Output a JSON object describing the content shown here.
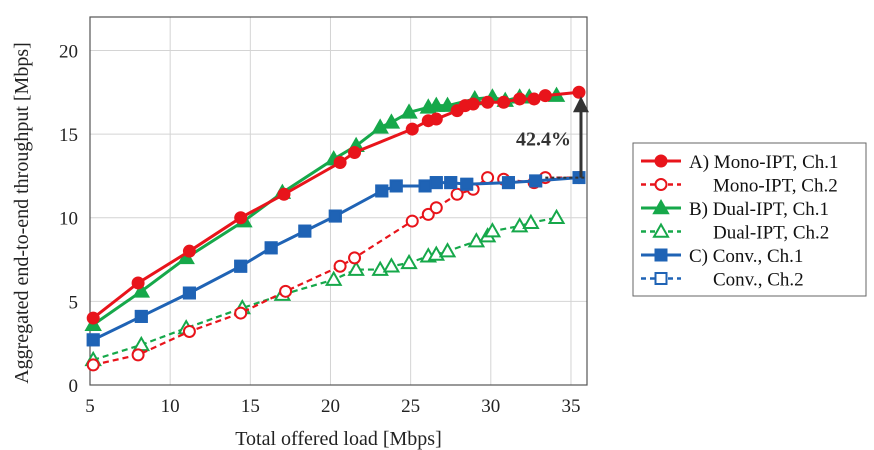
{
  "chart_data": {
    "type": "line",
    "xlabel": "Total offered load [Mbps]",
    "ylabel": "Aggregated end-to-end throughput [Mbps]",
    "xlim": [
      5,
      36
    ],
    "ylim": [
      0,
      22
    ],
    "xticks": [
      5,
      10,
      15,
      20,
      25,
      30,
      35
    ],
    "yticks": [
      0,
      5,
      10,
      15,
      20
    ],
    "grid": true,
    "legend_position": "right",
    "series": [
      {
        "name": "A) Mono-IPT, Ch.1",
        "color": "#e8141b",
        "dash": false,
        "marker": "circle",
        "filled": true,
        "points": [
          [
            5.2,
            4.0
          ],
          [
            8.0,
            6.1
          ],
          [
            11.2,
            8.0
          ],
          [
            14.4,
            10.0
          ],
          [
            17.1,
            11.4
          ],
          [
            20.6,
            13.3
          ],
          [
            21.5,
            13.9
          ],
          [
            25.1,
            15.3
          ],
          [
            26.1,
            15.8
          ],
          [
            26.6,
            15.9
          ],
          [
            27.9,
            16.4
          ],
          [
            28.4,
            16.7
          ],
          [
            28.9,
            16.8
          ],
          [
            29.8,
            16.9
          ],
          [
            30.8,
            16.9
          ],
          [
            31.8,
            17.1
          ],
          [
            32.7,
            17.1
          ],
          [
            33.4,
            17.3
          ],
          [
            35.5,
            17.5
          ]
        ]
      },
      {
        "name": "Mono-IPT, Ch.2",
        "color": "#e8141b",
        "dash": true,
        "marker": "circle",
        "filled": false,
        "points": [
          [
            5.2,
            1.2
          ],
          [
            8.0,
            1.8
          ],
          [
            11.2,
            3.2
          ],
          [
            14.4,
            4.3
          ],
          [
            17.2,
            5.6
          ],
          [
            20.6,
            7.1
          ],
          [
            21.5,
            7.6
          ],
          [
            25.1,
            9.8
          ],
          [
            26.1,
            10.2
          ],
          [
            26.6,
            10.6
          ],
          [
            27.9,
            11.4
          ],
          [
            28.9,
            11.7
          ],
          [
            29.8,
            12.4
          ],
          [
            30.8,
            12.3
          ],
          [
            32.7,
            12.1
          ],
          [
            33.4,
            12.4
          ],
          [
            35.5,
            12.4
          ]
        ]
      },
      {
        "name": "B) Dual-IPT, Ch.1",
        "color": "#16a84a",
        "dash": false,
        "marker": "triangle",
        "filled": true,
        "points": [
          [
            5.2,
            3.6
          ],
          [
            8.2,
            5.6
          ],
          [
            11.0,
            7.6
          ],
          [
            14.6,
            9.8
          ],
          [
            17.0,
            11.5
          ],
          [
            20.2,
            13.5
          ],
          [
            21.6,
            14.3
          ],
          [
            23.1,
            15.4
          ],
          [
            23.8,
            15.7
          ],
          [
            24.9,
            16.3
          ],
          [
            26.1,
            16.6
          ],
          [
            26.6,
            16.7
          ],
          [
            27.3,
            16.7
          ],
          [
            29.0,
            17.1
          ],
          [
            30.1,
            17.2
          ],
          [
            30.9,
            17.0
          ],
          [
            31.8,
            17.2
          ],
          [
            32.4,
            17.2
          ],
          [
            34.1,
            17.3
          ]
        ]
      },
      {
        "name": "Dual-IPT, Ch.2",
        "color": "#16a84a",
        "dash": true,
        "marker": "triangle",
        "filled": false,
        "points": [
          [
            5.2,
            1.5
          ],
          [
            8.2,
            2.4
          ],
          [
            11.0,
            3.4
          ],
          [
            14.5,
            4.6
          ],
          [
            17.0,
            5.4
          ],
          [
            20.2,
            6.3
          ],
          [
            21.6,
            6.9
          ],
          [
            23.1,
            6.9
          ],
          [
            23.8,
            7.1
          ],
          [
            24.9,
            7.3
          ],
          [
            26.1,
            7.7
          ],
          [
            26.6,
            7.8
          ],
          [
            27.3,
            8.0
          ],
          [
            29.1,
            8.6
          ],
          [
            29.8,
            8.9
          ],
          [
            30.1,
            9.2
          ],
          [
            31.8,
            9.5
          ],
          [
            32.5,
            9.7
          ],
          [
            34.1,
            10.0
          ]
        ]
      },
      {
        "name": "C) Conv., Ch.1",
        "color": "#1f63b5",
        "dash": false,
        "marker": "square",
        "filled": true,
        "points": [
          [
            5.2,
            2.7
          ],
          [
            8.2,
            4.1
          ],
          [
            11.2,
            5.5
          ],
          [
            14.4,
            7.1
          ],
          [
            16.3,
            8.2
          ],
          [
            18.4,
            9.2
          ],
          [
            20.3,
            10.1
          ],
          [
            23.2,
            11.6
          ],
          [
            24.1,
            11.9
          ],
          [
            25.9,
            11.9
          ],
          [
            26.6,
            12.1
          ],
          [
            27.5,
            12.1
          ],
          [
            28.5,
            12.0
          ],
          [
            31.1,
            12.1
          ],
          [
            32.8,
            12.2
          ],
          [
            35.5,
            12.4
          ]
        ]
      },
      {
        "name": "Conv., Ch.2",
        "color": "#1f63b5",
        "dash": true,
        "marker": "square",
        "filled": false,
        "points": [
          [
            5.2,
            2.7
          ],
          [
            8.2,
            4.1
          ],
          [
            11.2,
            5.5
          ],
          [
            14.4,
            7.1
          ],
          [
            16.3,
            8.2
          ],
          [
            18.4,
            9.2
          ],
          [
            20.3,
            10.1
          ],
          [
            23.2,
            11.6
          ],
          [
            24.1,
            11.9
          ],
          [
            25.9,
            11.9
          ],
          [
            26.6,
            12.1
          ],
          [
            27.5,
            12.1
          ],
          [
            28.5,
            12.0
          ],
          [
            31.1,
            12.1
          ],
          [
            32.8,
            12.2
          ]
        ]
      }
    ],
    "annotation": {
      "text": "42.4%",
      "x": 35.5,
      "y_from": 12.4,
      "y_to": 17.5
    }
  }
}
